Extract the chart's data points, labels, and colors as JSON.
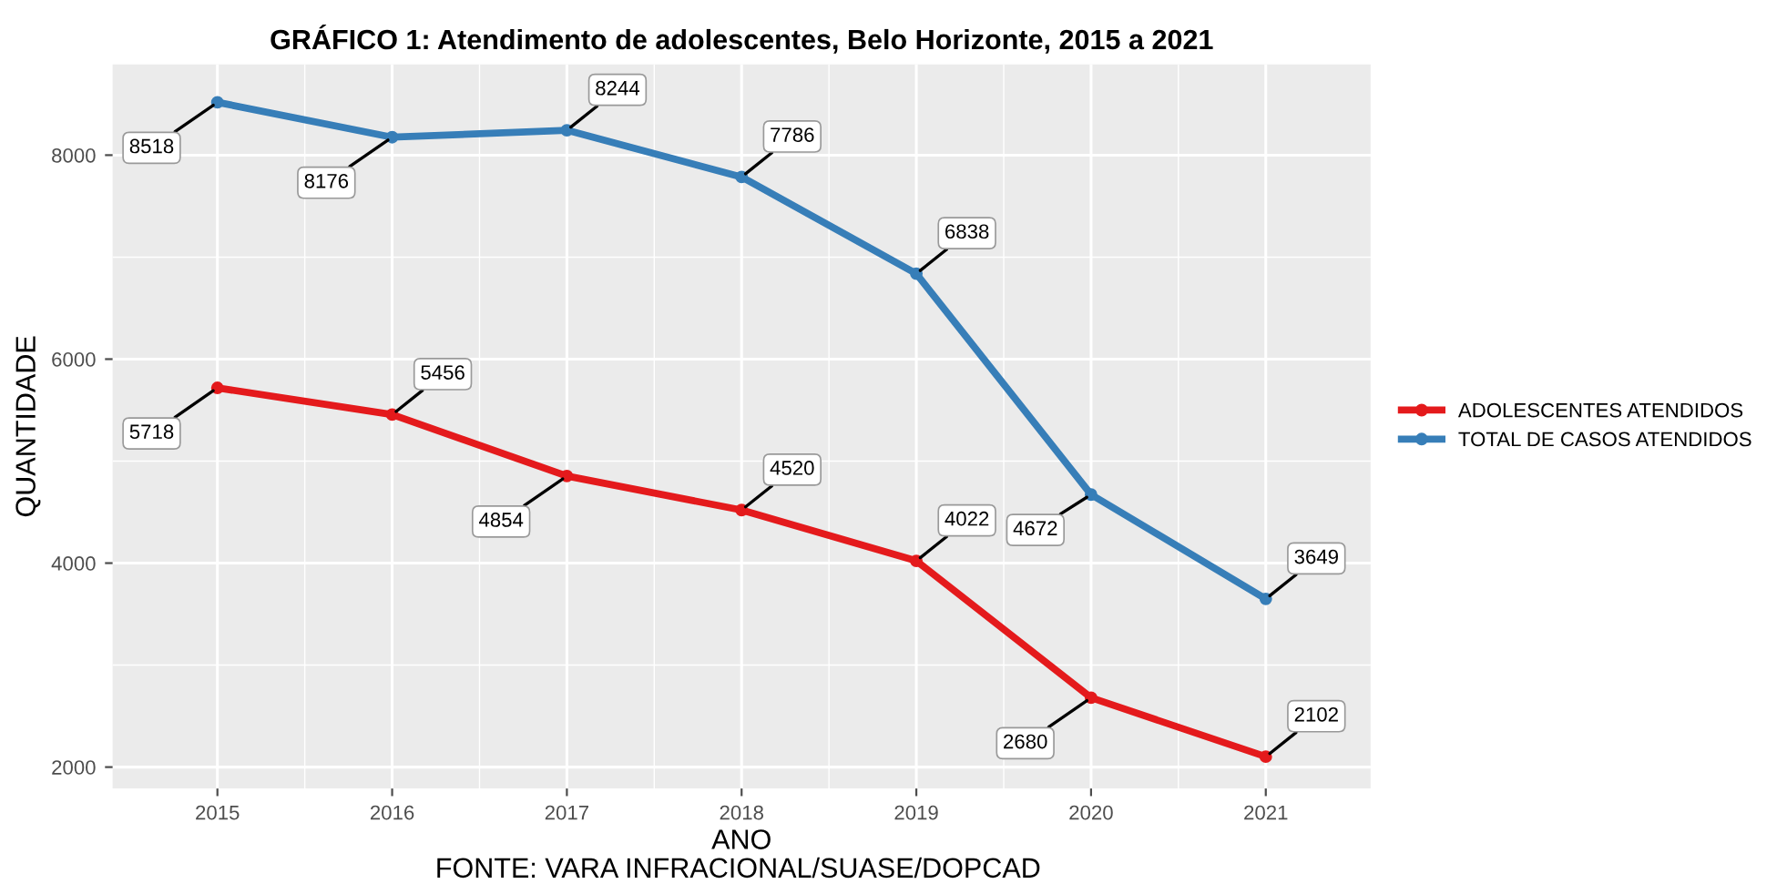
{
  "chart_data": {
    "type": "line",
    "title": "GRÁFICO 1: Atendimento de adolescentes, Belo Horizonte, 2015 a 2021",
    "xlabel": "ANO",
    "ylabel": "QUANTIDADE",
    "x": [
      2015,
      2016,
      2017,
      2018,
      2019,
      2020,
      2021
    ],
    "series": [
      {
        "name": "ADOLESCENTES ATENDIDOS",
        "color": "#e41a1c",
        "values": [
          5718,
          5456,
          4854,
          4520,
          4022,
          2680,
          2102
        ]
      },
      {
        "name": "TOTAL DE CASOS ATENDIDOS",
        "color": "#377eb8",
        "values": [
          8518,
          8176,
          8244,
          7786,
          6838,
          4672,
          3649
        ]
      }
    ],
    "xlim": [
      2014.4,
      2021.6
    ],
    "ylim": [
      1790,
      8890
    ],
    "xticks": [
      2015,
      2016,
      2017,
      2018,
      2019,
      2020,
      2021
    ],
    "yticks": [
      2000,
      4000,
      6000,
      8000
    ],
    "grid": true,
    "legend": "right",
    "marker": "circle",
    "line_style": "solid",
    "data_labels": true,
    "annotations": [
      "FONTE: VARA INFRACIONAL/SUASE/DOPCAD"
    ]
  }
}
